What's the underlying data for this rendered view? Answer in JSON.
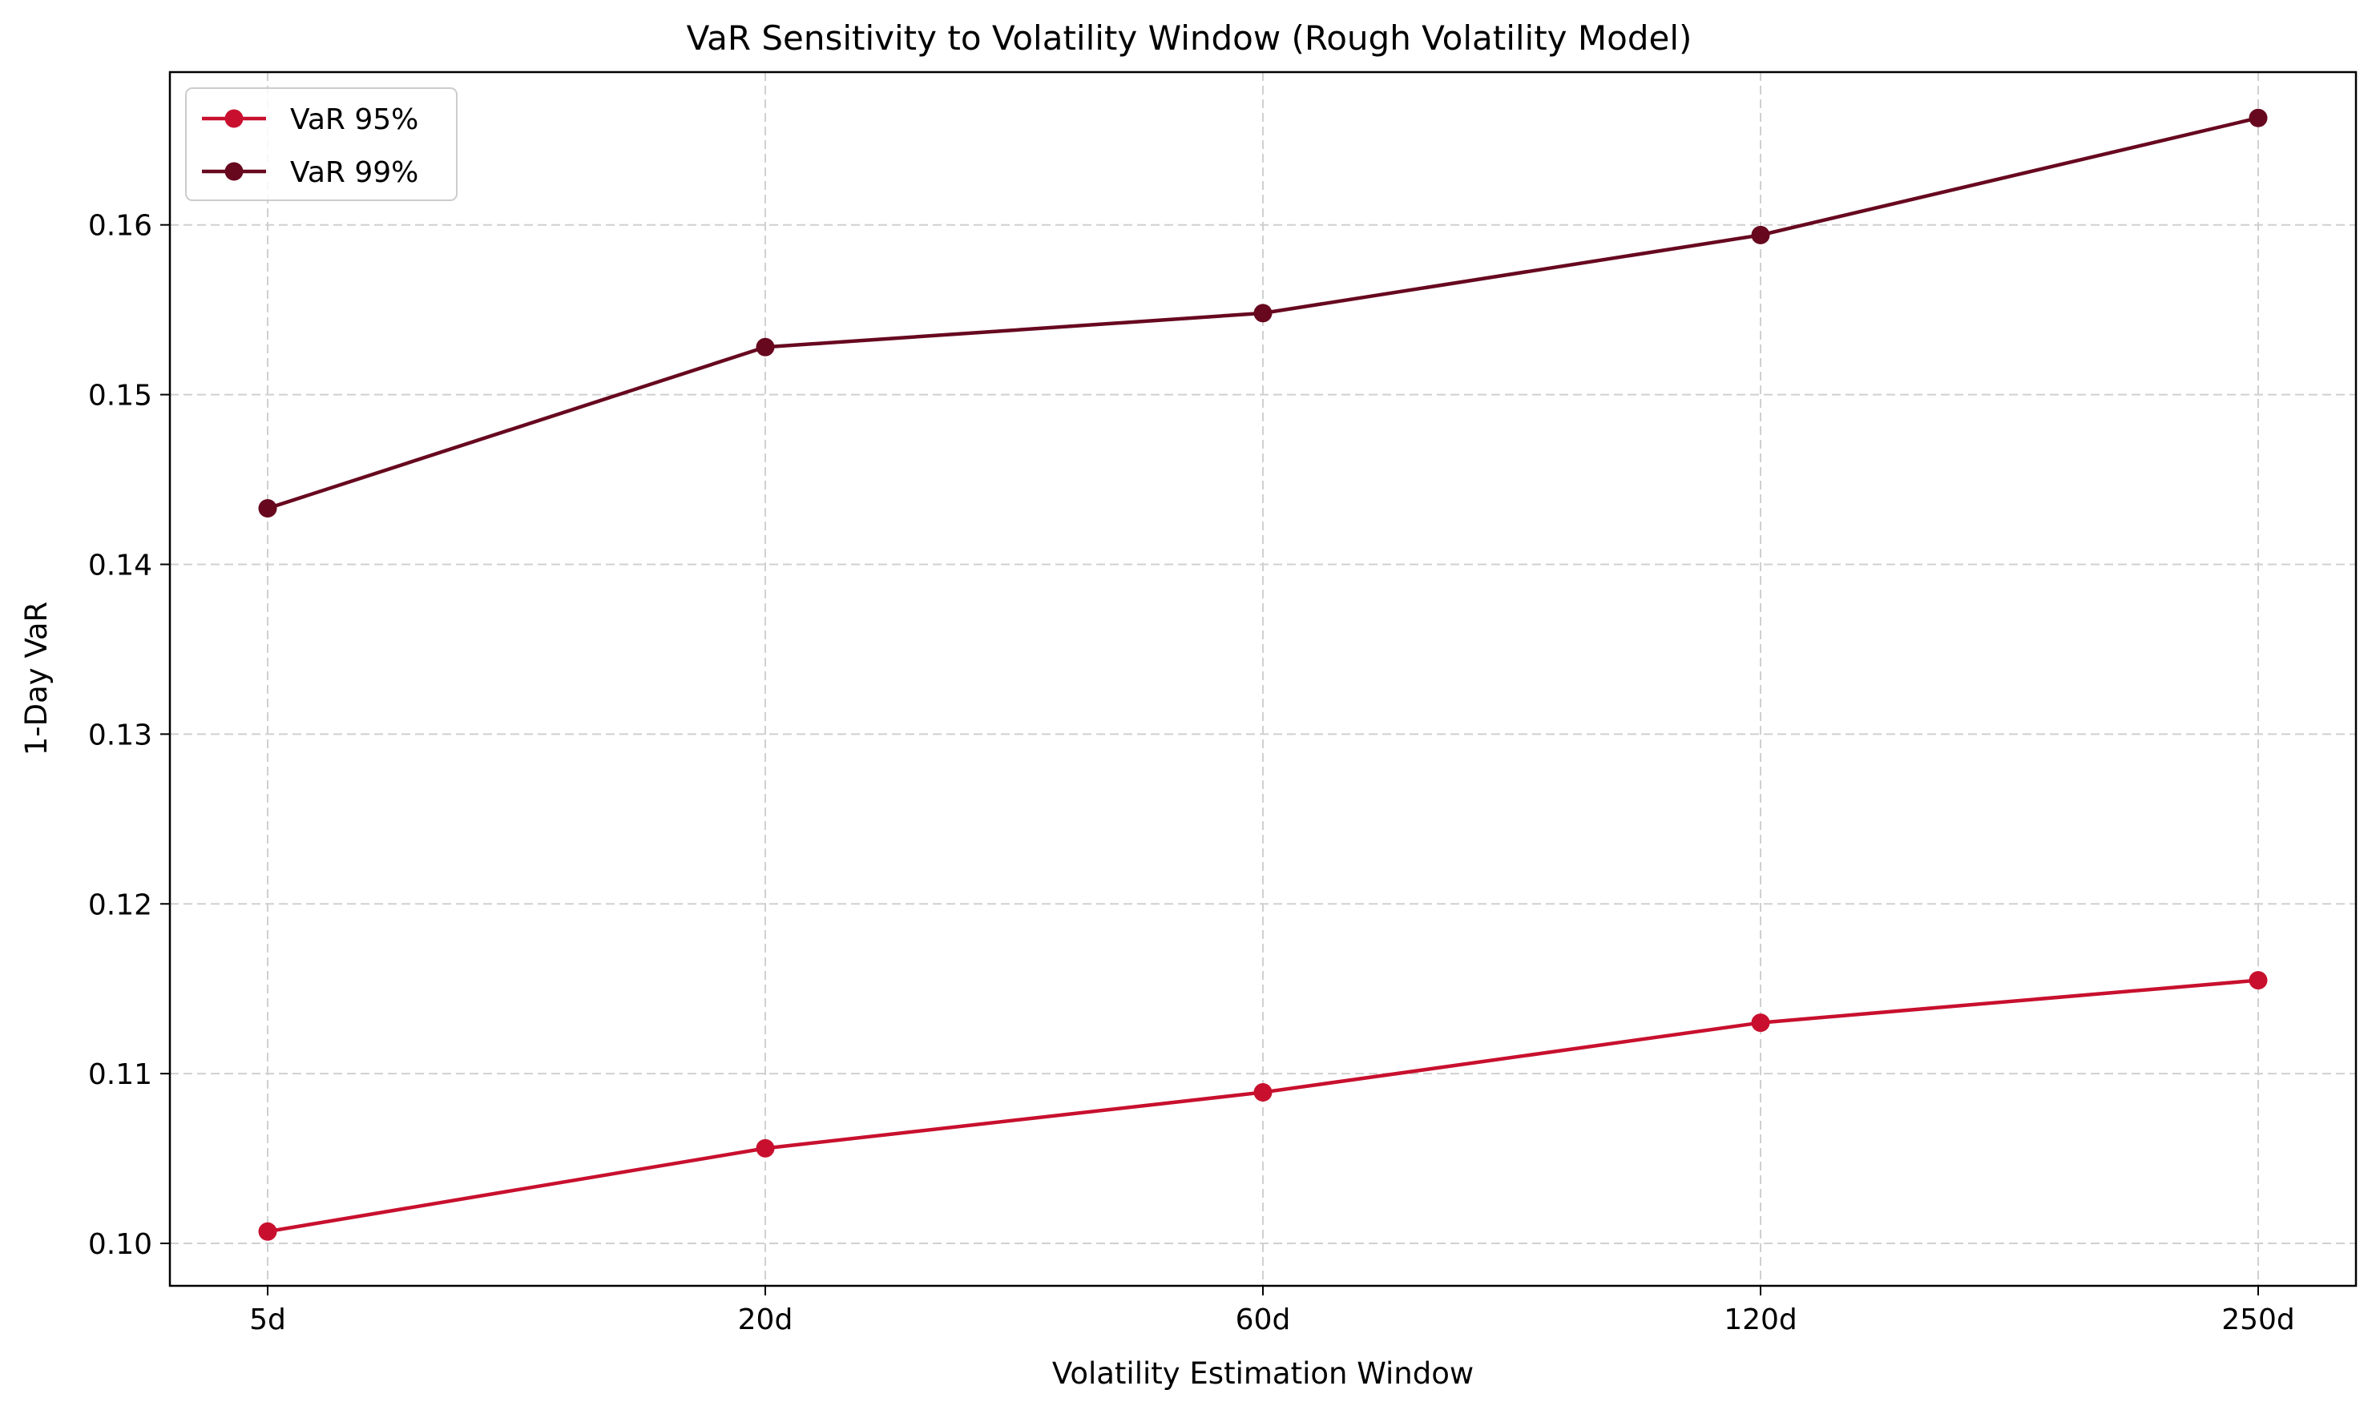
{
  "chart_data": {
    "type": "line",
    "title": "VaR Sensitivity to Volatility Window (Rough Volatility Model)",
    "xlabel": "Volatility Estimation Window",
    "ylabel": "1-Day VaR",
    "categories": [
      "5d",
      "20d",
      "60d",
      "120d",
      "250d"
    ],
    "series": [
      {
        "name": "VaR 95%",
        "color": "#c8102e",
        "values": [
          0.1007,
          0.1056,
          0.1089,
          0.113,
          0.1155
        ]
      },
      {
        "name": "VaR 99%",
        "color": "#67081f",
        "values": [
          0.1433,
          0.1528,
          0.1548,
          0.1594,
          0.1663
        ]
      }
    ],
    "ylim": [
      0.0975,
      0.169
    ],
    "yticks": [
      0.1,
      0.11,
      0.12,
      0.13,
      0.14,
      0.15,
      0.16
    ],
    "ytick_labels": [
      "0.10",
      "0.11",
      "0.12",
      "0.13",
      "0.14",
      "0.15",
      "0.16"
    ],
    "grid": true,
    "legend_position": "upper-left"
  }
}
